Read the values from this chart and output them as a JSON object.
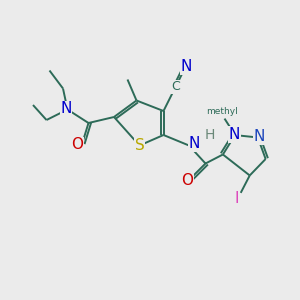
{
  "bg_color": "#ebebeb",
  "bond_color": "#2d6b58",
  "colors": {
    "S": "#b8a800",
    "N": "#0000cc",
    "N2": "#1a44bb",
    "O": "#cc0000",
    "I": "#dd44bb",
    "C": "#2d6b58",
    "H": "#6a8878"
  },
  "lw": 1.4
}
